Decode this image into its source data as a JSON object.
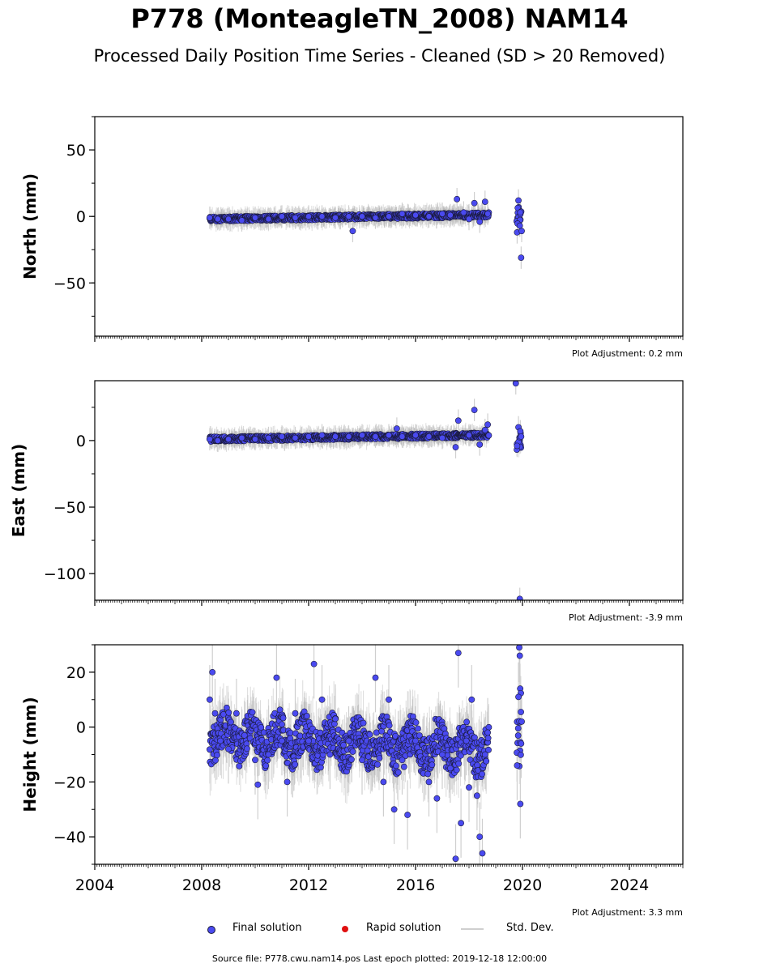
{
  "title": "P778 (MonteagleTN_2008) NAM14",
  "subtitle": "Processed Daily Position Time Series - Cleaned (SD > 20 Removed)",
  "footer": "Source file: P778.cwu.nam14.pos  Last epoch plotted: 2019-12-18 12:00:00",
  "legend": {
    "final": "Final solution",
    "rapid": "Rapid solution",
    "std": "Std. Dev."
  },
  "colors": {
    "final": "#4a4af0",
    "final_edge": "#1a1a3a",
    "rapid": "#e01010",
    "std": "#cfcfcf"
  },
  "chart_data": [
    {
      "type": "scatter",
      "ylabel": "North (mm)",
      "adjustment": "Plot Adjustment: 0.2 mm",
      "xlim": [
        2004,
        2026
      ],
      "ylim": [
        -90,
        75
      ],
      "yticks": [
        -50,
        0,
        50
      ],
      "yticklabels": [
        "−50",
        "0",
        "50"
      ],
      "series": [
        {
          "name": "Final solution",
          "points": [
            [
              2008.3,
              -1
            ],
            [
              2008.6,
              -2
            ],
            [
              2009.0,
              -2
            ],
            [
              2009.5,
              -3
            ],
            [
              2010.0,
              -1
            ],
            [
              2010.5,
              -2
            ],
            [
              2011.0,
              0
            ],
            [
              2011.5,
              -1
            ],
            [
              2012.0,
              0
            ],
            [
              2012.5,
              0
            ],
            [
              2013.0,
              -1
            ],
            [
              2013.5,
              0
            ],
            [
              2013.65,
              -11
            ],
            [
              2014.0,
              0
            ],
            [
              2014.5,
              -1
            ],
            [
              2015.0,
              0
            ],
            [
              2015.5,
              2
            ],
            [
              2016.0,
              1
            ],
            [
              2016.5,
              0
            ],
            [
              2017.0,
              2
            ],
            [
              2017.3,
              1
            ],
            [
              2017.55,
              13
            ],
            [
              2017.8,
              3
            ],
            [
              2018.0,
              -2
            ],
            [
              2018.2,
              10
            ],
            [
              2018.4,
              -4
            ],
            [
              2018.6,
              11
            ],
            [
              2018.7,
              2
            ],
            [
              2019.8,
              -12
            ],
            [
              2019.85,
              12
            ],
            [
              2019.9,
              -7
            ],
            [
              2019.92,
              3
            ],
            [
              2019.95,
              -31
            ],
            [
              2019.97,
              -11
            ]
          ]
        }
      ]
    },
    {
      "type": "scatter",
      "ylabel": "East (mm)",
      "adjustment": "Plot Adjustment: -3.9 mm",
      "xlim": [
        2004,
        2026
      ],
      "ylim": [
        -120,
        45
      ],
      "yticks": [
        -100,
        -50,
        0
      ],
      "yticklabels": [
        "−100",
        "−50",
        "0"
      ],
      "series": [
        {
          "name": "Final solution",
          "points": [
            [
              2008.3,
              1
            ],
            [
              2008.6,
              0
            ],
            [
              2009.0,
              1
            ],
            [
              2009.5,
              2
            ],
            [
              2010.0,
              1
            ],
            [
              2010.5,
              2
            ],
            [
              2011.0,
              3
            ],
            [
              2011.5,
              2
            ],
            [
              2012.0,
              3
            ],
            [
              2012.5,
              4
            ],
            [
              2013.0,
              3
            ],
            [
              2013.5,
              3
            ],
            [
              2014.0,
              4
            ],
            [
              2014.5,
              3
            ],
            [
              2015.0,
              4
            ],
            [
              2015.3,
              9
            ],
            [
              2015.5,
              3
            ],
            [
              2016.0,
              4
            ],
            [
              2016.5,
              3
            ],
            [
              2017.0,
              2
            ],
            [
              2017.5,
              -5
            ],
            [
              2017.6,
              15
            ],
            [
              2018.0,
              4
            ],
            [
              2018.2,
              23
            ],
            [
              2018.4,
              -3
            ],
            [
              2018.6,
              8
            ],
            [
              2018.7,
              12
            ],
            [
              2019.75,
              43
            ],
            [
              2019.8,
              -4
            ],
            [
              2019.85,
              10
            ],
            [
              2019.9,
              -119
            ],
            [
              2019.92,
              7
            ],
            [
              2019.95,
              3
            ]
          ]
        }
      ]
    },
    {
      "type": "scatter",
      "ylabel": "Height (mm)",
      "adjustment": "Plot Adjustment: 3.3 mm",
      "xlim": [
        2004,
        2026
      ],
      "ylim": [
        -50,
        30
      ],
      "yticks": [
        -40,
        -20,
        0,
        20
      ],
      "yticklabels": [
        "−40",
        "−20",
        "0",
        "20"
      ],
      "xticks": [
        2004,
        2008,
        2012,
        2016,
        2020,
        2024
      ],
      "xticklabels": [
        "2004",
        "2008",
        "2012",
        "2016",
        "2020",
        "2024"
      ],
      "series": [
        {
          "name": "Final solution",
          "points": [
            [
              2008.3,
              10
            ],
            [
              2008.4,
              20
            ],
            [
              2008.5,
              5
            ],
            [
              2008.7,
              -5
            ],
            [
              2009.0,
              -8
            ],
            [
              2009.3,
              5
            ],
            [
              2009.6,
              -3
            ],
            [
              2010.0,
              -12
            ],
            [
              2010.1,
              -21
            ],
            [
              2010.5,
              -10
            ],
            [
              2010.8,
              18
            ],
            [
              2011.0,
              -5
            ],
            [
              2011.2,
              -20
            ],
            [
              2011.5,
              5
            ],
            [
              2012.0,
              -5
            ],
            [
              2012.2,
              23
            ],
            [
              2012.5,
              10
            ],
            [
              2012.8,
              -10
            ],
            [
              2013.0,
              3
            ],
            [
              2013.5,
              -5
            ],
            [
              2014.0,
              -12
            ],
            [
              2014.5,
              18
            ],
            [
              2014.8,
              -20
            ],
            [
              2015.0,
              10
            ],
            [
              2015.2,
              -30
            ],
            [
              2015.5,
              -12
            ],
            [
              2015.7,
              -32
            ],
            [
              2016.0,
              -5
            ],
            [
              2016.5,
              -20
            ],
            [
              2016.8,
              -26
            ],
            [
              2017.0,
              -10
            ],
            [
              2017.3,
              -15
            ],
            [
              2017.5,
              -48
            ],
            [
              2017.6,
              27
            ],
            [
              2017.7,
              -35
            ],
            [
              2017.9,
              -5
            ],
            [
              2018.0,
              -22
            ],
            [
              2018.1,
              10
            ],
            [
              2018.3,
              -25
            ],
            [
              2018.4,
              -40
            ],
            [
              2018.5,
              -46
            ],
            [
              2018.6,
              -10
            ],
            [
              2018.7,
              -2
            ],
            [
              2019.8,
              -14
            ],
            [
              2019.85,
              11
            ],
            [
              2019.88,
              29
            ],
            [
              2019.9,
              26
            ],
            [
              2019.92,
              -28
            ],
            [
              2019.95,
              -6
            ],
            [
              2019.97,
              2
            ]
          ]
        }
      ]
    }
  ]
}
